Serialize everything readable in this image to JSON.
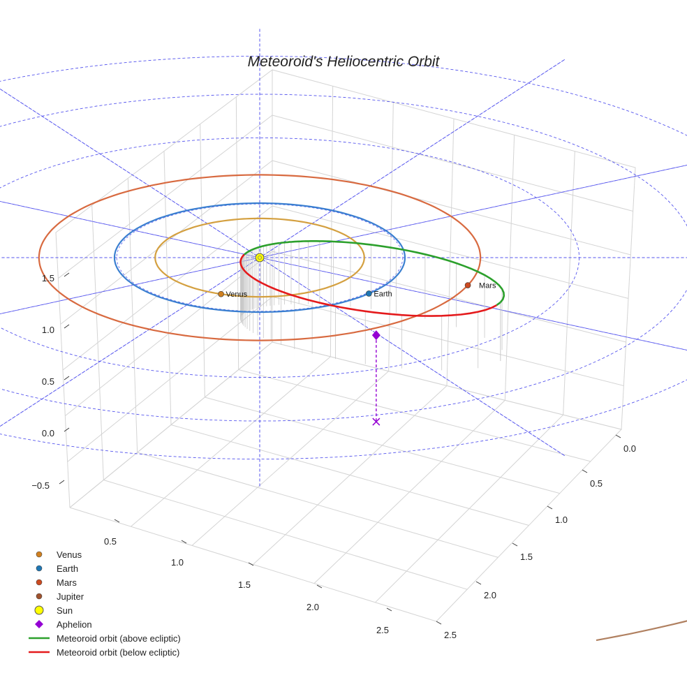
{
  "chart_data": {
    "type": "line",
    "title": "Meteoroid's Heliocentric Orbit",
    "projection": "3d",
    "x_ticks": [
      "0.0",
      "0.5",
      "1.0",
      "1.5",
      "2.0",
      "2.5"
    ],
    "y_ticks": [
      "0.5",
      "1.0",
      "1.5",
      "2.0",
      "2.5"
    ],
    "z_ticks": [
      "−0.5",
      "0.0",
      "0.5",
      "1.0",
      "1.5"
    ],
    "planets": [
      {
        "name": "Venus",
        "label": "Venus",
        "orbit_radius_au": 0.72,
        "color": "#d4a040",
        "marker": "#d08020"
      },
      {
        "name": "Earth",
        "label": "Earth",
        "orbit_radius_au": 1.0,
        "color": "#3a7fd0",
        "marker": "#1f77b4"
      },
      {
        "name": "Mars",
        "label": "Mars",
        "orbit_radius_au": 1.52,
        "color": "#d86a40",
        "marker": "#cc4a20"
      },
      {
        "name": "Jupiter",
        "label": "",
        "orbit_radius_au": 5.2,
        "color": "#b08060",
        "marker": "#a0522d"
      }
    ],
    "sun": {
      "name": "Sun",
      "x": 0,
      "y": 0,
      "z": 0,
      "color": "#ffff00"
    },
    "meteoroid_orbit": {
      "perihelion_au": 0.12,
      "aphelion_au": 1.85,
      "above_ecliptic_color": "#2ca02c",
      "below_ecliptic_color": "#e41a1c"
    },
    "aphelion_marker": {
      "name": "Aphelion",
      "color": "#9400d3"
    },
    "legend": [
      {
        "label": "Venus",
        "kind": "dot",
        "color": "#d08020"
      },
      {
        "label": "Earth",
        "kind": "dot",
        "color": "#1f77b4"
      },
      {
        "label": "Mars",
        "kind": "dot",
        "color": "#cc4a20"
      },
      {
        "label": "Jupiter",
        "kind": "dot",
        "color": "#a0522d"
      },
      {
        "label": "Sun",
        "kind": "sun",
        "color": "#ffff00"
      },
      {
        "label": "Aphelion",
        "kind": "diamond",
        "color": "#9400d3"
      },
      {
        "label": "Meteoroid orbit (above ecliptic)",
        "kind": "line",
        "color": "#2ca02c"
      },
      {
        "label": "Meteoroid orbit (below ecliptic)",
        "kind": "line",
        "color": "#e41a1c"
      }
    ],
    "legend_position": "bottom-left",
    "grid": true
  }
}
